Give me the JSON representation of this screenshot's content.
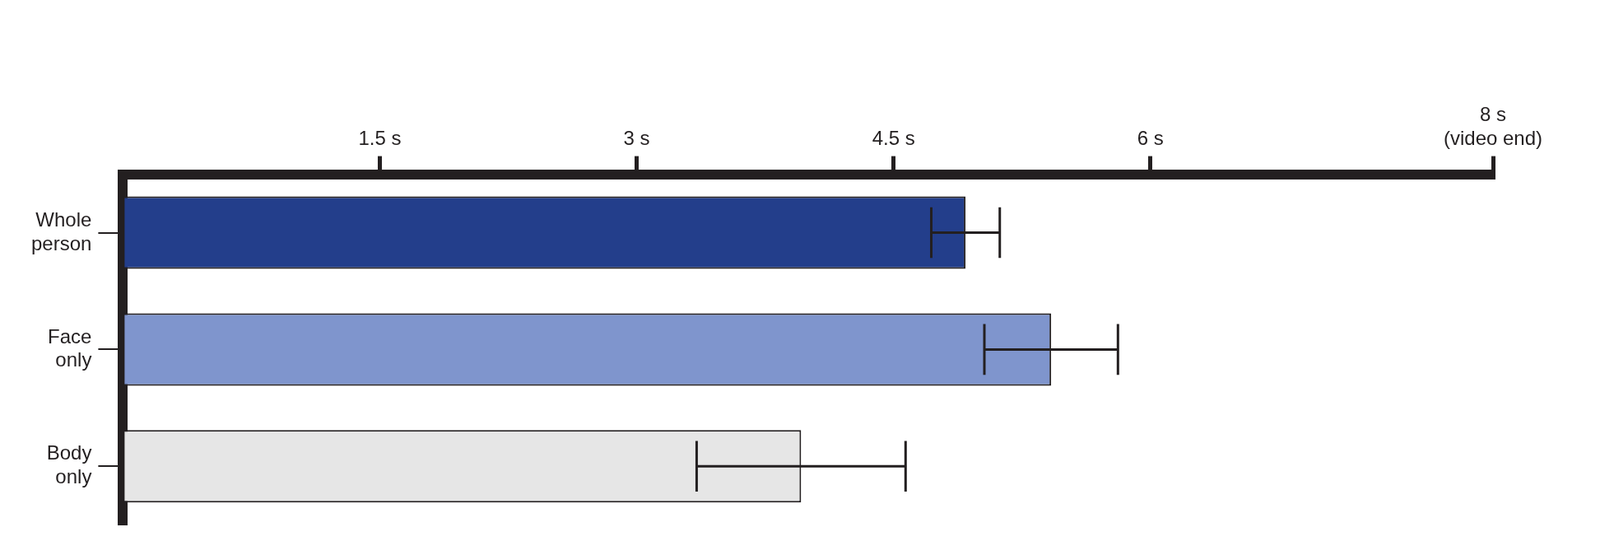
{
  "chart_data": {
    "type": "bar",
    "orientation": "horizontal",
    "categories": [
      "Whole person",
      "Face only",
      "Body only"
    ],
    "values": [
      4.92,
      5.42,
      3.96
    ],
    "errors": [
      0.2,
      0.39,
      0.61
    ],
    "colors": [
      "#233e8b",
      "#7f95cd",
      "#e6e6e6"
    ],
    "xlim": [
      0,
      8
    ],
    "xticks": [
      {
        "value": 1.5,
        "label": "1.5 s"
      },
      {
        "value": 3,
        "label": "3 s"
      },
      {
        "value": 4.5,
        "label": "4.5 s"
      },
      {
        "value": 6,
        "label": "6 s"
      },
      {
        "value": 8,
        "label": "8 s (video end)"
      }
    ],
    "grid": false
  }
}
